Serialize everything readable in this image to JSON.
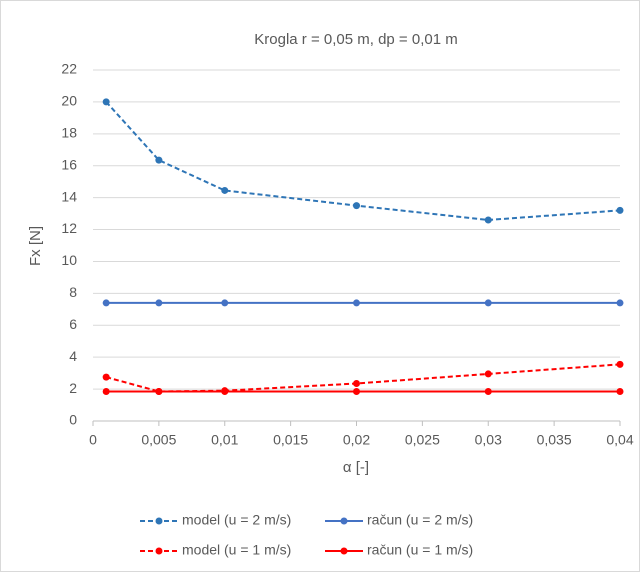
{
  "chart_data": {
    "type": "line",
    "title": "Krogla r = 0,05 m, dp = 0,01 m",
    "x_label": "α [-]",
    "y_label": "Fx [N]",
    "x": [
      0.001,
      0.005,
      0.01,
      0.02,
      0.03,
      0.04
    ],
    "series": [
      {
        "name": "model (u = 2 m/s)",
        "color": "#2e75b6",
        "style": "dashed",
        "values": [
          20,
          16.35,
          14.45,
          13.5,
          12.6,
          13.2
        ]
      },
      {
        "name": "račun (u = 2 m/s)",
        "color": "#4472c4",
        "style": "solid",
        "values": [
          7.4,
          7.4,
          7.4,
          7.4,
          7.4,
          7.4
        ]
      },
      {
        "name": "model (u = 1 m/s)",
        "color": "#ff0000",
        "style": "dashed",
        "values": [
          2.75,
          1.85,
          1.9,
          2.35,
          2.95,
          3.55
        ]
      },
      {
        "name": "račun (u = 1 m/s)",
        "color": "#ff0000",
        "style": "solid",
        "values": [
          1.85,
          1.85,
          1.85,
          1.85,
          1.85,
          1.85
        ]
      }
    ],
    "xlim": [
      0,
      0.04
    ],
    "xticks": [
      0,
      {
        "value": 0.005,
        "label": "0,005"
      },
      {
        "value": 0.01,
        "label": "0,01"
      },
      {
        "value": 0.015,
        "label": "0,015"
      },
      {
        "value": 0.02,
        "label": "0,02"
      },
      {
        "value": 0.025,
        "label": "0,025"
      },
      {
        "value": 0.03,
        "label": "0,03"
      },
      {
        "value": 0.035,
        "label": "0,035"
      },
      {
        "value": 0.04,
        "label": "0,04"
      }
    ],
    "ylim": [
      0,
      22
    ],
    "yticks": [
      0,
      2,
      4,
      6,
      8,
      10,
      12,
      14,
      16,
      18,
      20,
      22
    ],
    "grid": true,
    "legend": "bottom"
  }
}
